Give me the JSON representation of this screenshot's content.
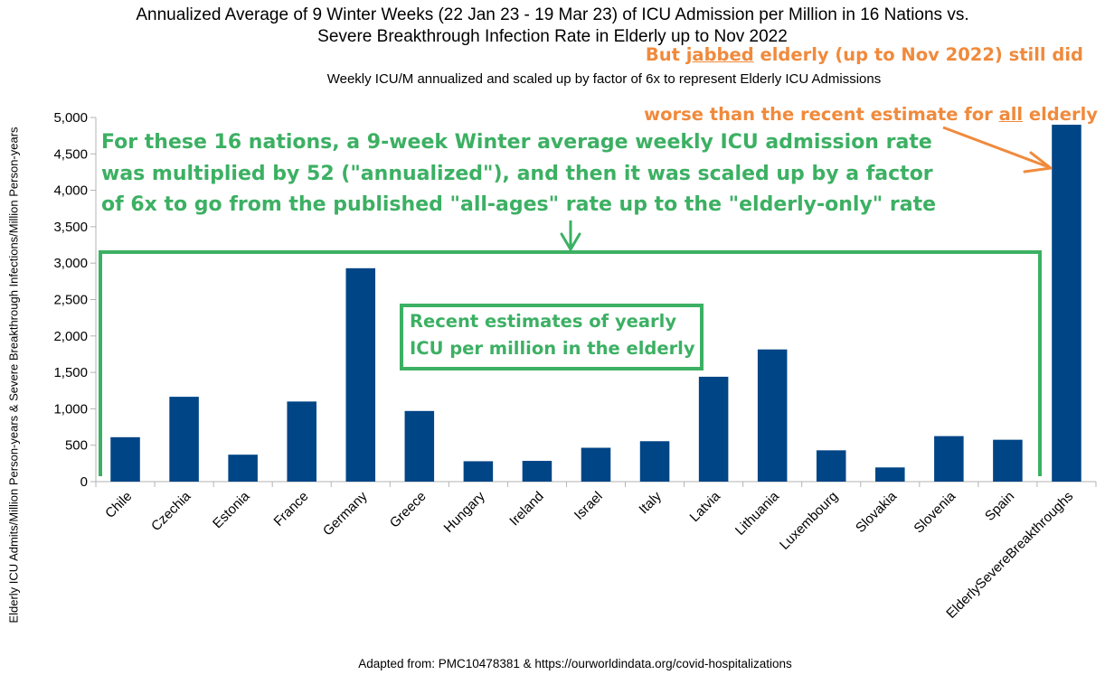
{
  "chart_data": {
    "type": "bar",
    "title": [
      "Annualized Average of 9 Winter Weeks (22 Jan 23 - 19 Mar 23) of ICU Admission per Million in 16 Nations vs.",
      "Severe Breakthrough Infection Rate in Elderly up to Nov 2022"
    ],
    "subtitle": "Weekly ICU/M annualized and scaled up by factor of 6x to represent Elderly ICU Admissions",
    "ylabel": "Elderly ICU Admits/Million Person-years & Severe Breakthrough Infections/Million Person-years",
    "xlabel": "",
    "categories": [
      "Chile",
      "Czechia",
      "Estonia",
      "France",
      "Germany",
      "Greece",
      "Hungary",
      "Ireland",
      "Israel",
      "Italy",
      "Latvia",
      "Lithuania",
      "Luxembourg",
      "Slovakia",
      "Slovenia",
      "Spain",
      "ElderlySevereBreakthroughs"
    ],
    "values": [
      610,
      1165,
      370,
      1100,
      2930,
      970,
      280,
      285,
      465,
      555,
      1440,
      1815,
      430,
      195,
      625,
      575,
      4900
    ],
    "ylim": [
      0,
      5000
    ],
    "yticks": [
      0,
      500,
      1000,
      1500,
      2000,
      2500,
      3000,
      3500,
      4000,
      4500,
      5000
    ],
    "ytick_labels": [
      "0",
      "500",
      "1,000",
      "1,500",
      "2,000",
      "2,500",
      "3,000",
      "3,500",
      "4,000",
      "4,500",
      "5,000"
    ],
    "grid": false,
    "bar_color": "#004586",
    "source": "Adapted from: PMC10478381 & https://ourworldindata.org/covid-hospitalizations",
    "annotations": {
      "green_note": [
        "For these 16 nations, a 9-week Winter average weekly ICU admission rate",
        "was multiplied by 52 (\"annualized\"), and then it was scaled up by a factor",
        "of 6x to go from the published \"all-ages\" rate up to the \"elderly-only\" rate"
      ],
      "box_note": [
        "Recent estimates of yearly",
        "ICU per million in the elderly"
      ],
      "orange_note_1_parts": [
        "But ",
        "jabbed",
        " elderly (up to Nov 2022) still did"
      ],
      "orange_note_2_parts": [
        "worse than the recent estimate for ",
        "all",
        " elderly"
      ],
      "green_color": "#3cb063",
      "orange_color": "#f08a3c"
    }
  }
}
